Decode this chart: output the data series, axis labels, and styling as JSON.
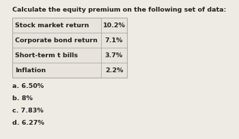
{
  "title": "Calculate the equity premium on the following set of data:",
  "table_rows": [
    [
      "Stock market return",
      "10.2%"
    ],
    [
      "Corporate bond return",
      "7.1%"
    ],
    [
      "Short-term t bills",
      "3.7%"
    ],
    [
      "Inflation",
      "2.2%"
    ]
  ],
  "options": [
    "a. 6.50%",
    "b. 8%",
    "c. 7.83%",
    "d. 6.27%"
  ],
  "bg_color": "#eeebe4",
  "table_bg": "#e8e4dc",
  "border_color": "#aaaaaa",
  "title_fontsize": 6.8,
  "table_fontsize": 6.8,
  "option_fontsize": 6.8
}
